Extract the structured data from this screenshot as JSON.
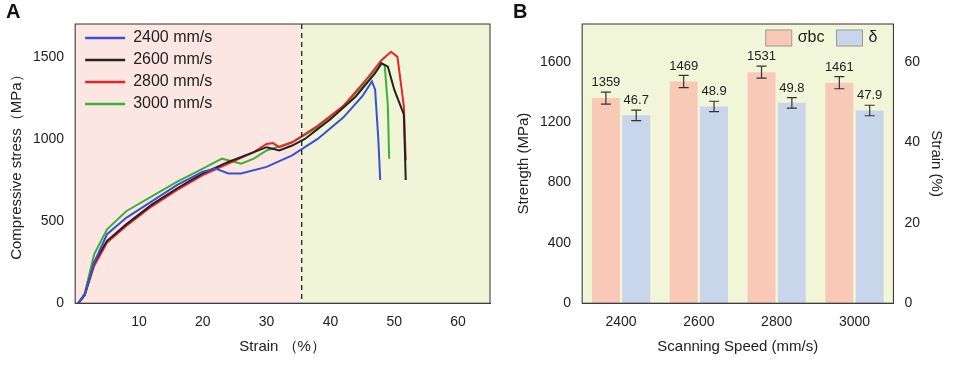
{
  "chart_data": [
    {
      "type": "line",
      "panel": "A",
      "x_label": "Strain （%）",
      "y_label": "Compressive stress（MPa）",
      "xlim": [
        0,
        65
      ],
      "xticks": [
        10,
        20,
        30,
        40,
        50,
        60
      ],
      "ylim": [
        0,
        1700
      ],
      "yticks": [
        0,
        500,
        1000,
        1500
      ],
      "grid": false,
      "legend": "upper left",
      "reference_line": {
        "x": 35.5,
        "line_style": "dashed"
      },
      "regions": [
        {
          "x": [
            0,
            35.5
          ],
          "color": "#fce6e1"
        },
        {
          "x": [
            35.5,
            65
          ],
          "color": "#eff5d6"
        }
      ],
      "series": [
        {
          "name": "2400 mm/s",
          "color": "#3a4fd6",
          "x": [
            0.5,
            1.5,
            3,
            5,
            8,
            12,
            16,
            20,
            22,
            24,
            26,
            30,
            34,
            38,
            42,
            45,
            46.5,
            47,
            47.5,
            47.8
          ],
          "values": [
            0,
            50,
            250,
            420,
            520,
            620,
            720,
            800,
            820,
            790,
            790,
            830,
            900,
            1000,
            1130,
            1260,
            1350,
            1300,
            1000,
            750
          ]
        },
        {
          "name": "2600 mm/s",
          "color": "#222222",
          "x": [
            0.5,
            1.5,
            3,
            5,
            8,
            12,
            16,
            20,
            24,
            28,
            30,
            32,
            34,
            36,
            40,
            44,
            47,
            48,
            49,
            50,
            51.5,
            51.8
          ],
          "values": [
            0,
            50,
            250,
            380,
            480,
            600,
            700,
            790,
            860,
            920,
            950,
            930,
            960,
            1000,
            1120,
            1260,
            1400,
            1460,
            1440,
            1300,
            1150,
            750
          ]
        },
        {
          "name": "2800 mm/s",
          "color": "#e8252a",
          "x": [
            0.5,
            1.5,
            3,
            5,
            8,
            12,
            16,
            20,
            24,
            28,
            30,
            31,
            32,
            34,
            38,
            42,
            46,
            48,
            49.5,
            50.5,
            51.5,
            51.8
          ],
          "values": [
            0,
            50,
            230,
            370,
            470,
            590,
            690,
            780,
            850,
            920,
            970,
            975,
            950,
            980,
            1080,
            1200,
            1380,
            1480,
            1531,
            1500,
            1200,
            870
          ]
        },
        {
          "name": "3000 mm/s",
          "color": "#3bb03b",
          "x": [
            0.5,
            1.5,
            3,
            5,
            8,
            12,
            16,
            20,
            23,
            24,
            26,
            28,
            30,
            34,
            38,
            42,
            46,
            48,
            48.5,
            49,
            49.2
          ],
          "values": [
            0,
            60,
            300,
            450,
            560,
            650,
            740,
            820,
            880,
            870,
            850,
            880,
            930,
            980,
            1070,
            1200,
            1360,
            1460,
            1450,
            1200,
            880
          ]
        }
      ]
    },
    {
      "type": "bar",
      "panel": "B",
      "x_label": "Scanning Speed (mm/s)",
      "y_label": "Strength (MPa)",
      "y2_label": "Strain (%)",
      "categories": [
        "2400",
        "2600",
        "2800",
        "3000"
      ],
      "ylim": [
        0,
        1850
      ],
      "yticks": [
        0,
        400,
        800,
        1200,
        1600
      ],
      "y2lim": [
        0,
        69.4
      ],
      "y2ticks": [
        0,
        20,
        40,
        60
      ],
      "grid": false,
      "legend": "upper right",
      "data_labels": true,
      "background": "#f1f6d8",
      "series": [
        {
          "name": "σbc",
          "color": "#f7c9b6",
          "axis": "y",
          "values": [
            1359,
            1469,
            1531,
            1461
          ],
          "errors": [
            40,
            40,
            40,
            40
          ]
        },
        {
          "name": "δ",
          "color": "#c9d5ea",
          "axis": "y2",
          "values": [
            46.7,
            48.9,
            49.8,
            47.9
          ],
          "errors": [
            1.3,
            1.3,
            1.3,
            1.3
          ]
        }
      ]
    }
  ]
}
